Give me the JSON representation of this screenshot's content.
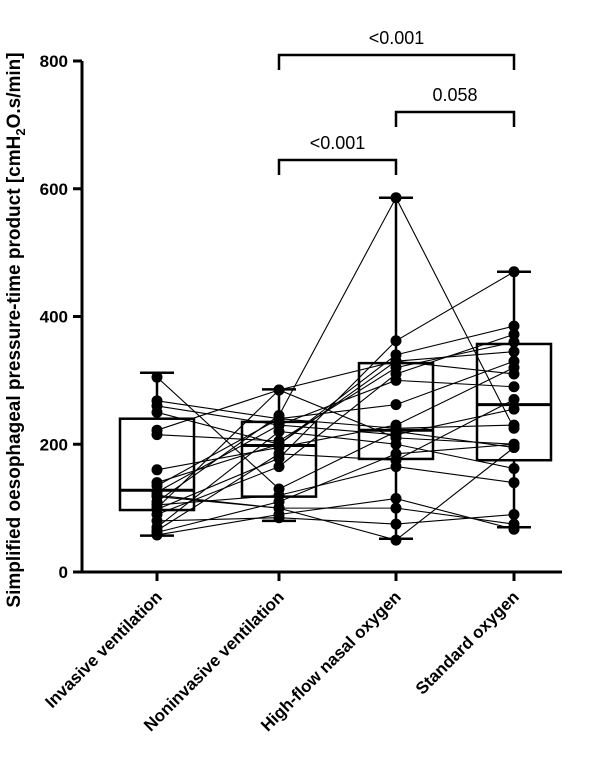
{
  "chart_data": {
    "type": "box",
    "ylabel": "Simplified oesophageal pressure-time product [cmH2O.s/min]",
    "ylabel_parts": {
      "before": "Simplified oesophageal pressure-time product [cmH",
      "sub": "2",
      "after": "O.s/min]"
    },
    "ylim": [
      0,
      800
    ],
    "yticks": [
      0,
      200,
      400,
      600,
      800
    ],
    "ytick_labels": [
      "0",
      "200",
      "400",
      "600",
      "800"
    ],
    "categories": [
      "Invasive ventilation",
      "Noninvasive ventilation",
      "High-flow nasal oxygen",
      "Standard oxygen"
    ],
    "boxes": [
      {
        "min": 57,
        "q1": 97,
        "median": 128,
        "q3": 240,
        "max": 312
      },
      {
        "min": 80,
        "q1": 118,
        "median": 198,
        "q3": 235,
        "max": 286
      },
      {
        "min": 52,
        "q1": 177,
        "median": 222,
        "q3": 327,
        "max": 586
      },
      {
        "min": 70,
        "q1": 175,
        "median": 262,
        "q3": 357,
        "max": 470
      }
    ],
    "subjects": [
      [
        305,
        130,
        220,
        195
      ],
      [
        268,
        240,
        225,
        230
      ],
      [
        260,
        230,
        300,
        290
      ],
      [
        250,
        200,
        330,
        345
      ],
      [
        222,
        285,
        210,
        200
      ],
      [
        215,
        205,
        320,
        360
      ],
      [
        160,
        195,
        230,
        320
      ],
      [
        140,
        200,
        340,
        385
      ],
      [
        135,
        240,
        262,
        330
      ],
      [
        125,
        230,
        215,
        255
      ],
      [
        118,
        100,
        100,
        75
      ],
      [
        110,
        245,
        586,
        225
      ],
      [
        105,
        120,
        165,
        140
      ],
      [
        98,
        178,
        362,
        470
      ],
      [
        90,
        165,
        310,
        372
      ],
      [
        80,
        85,
        75,
        90
      ],
      [
        70,
        220,
        200,
        162
      ],
      [
        62,
        110,
        185,
        200
      ],
      [
        58,
        90,
        115,
        67
      ],
      [
        120,
        100,
        50,
        195
      ],
      [
        100,
        285,
        330,
        310
      ],
      [
        65,
        185,
        175,
        270
      ]
    ],
    "comparisons": [
      {
        "from": 1,
        "to": 2,
        "label": "<0.001"
      },
      {
        "from": 2,
        "to": 3,
        "label": "0.058"
      },
      {
        "from": 1,
        "to": 3,
        "label": "<0.001"
      }
    ],
    "grid": false,
    "legend": false
  }
}
